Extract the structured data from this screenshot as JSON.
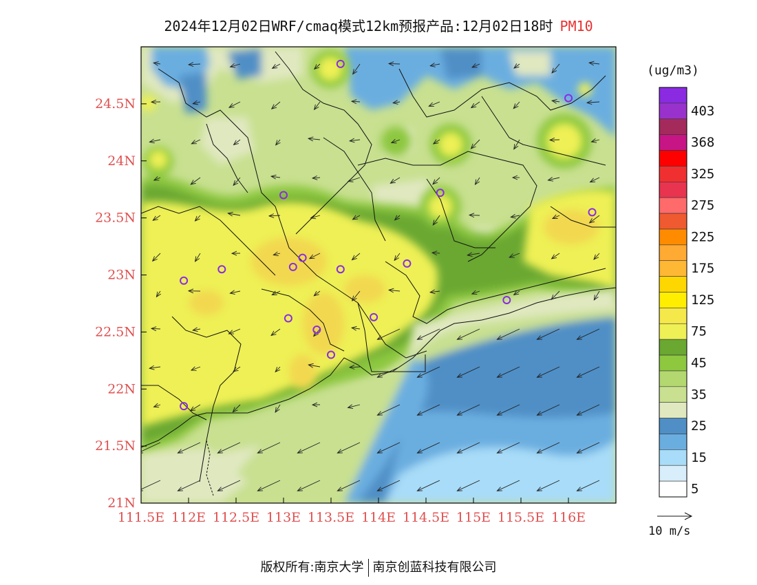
{
  "title": {
    "main": "2024年12月02日WRF/cmaq模式12km预报产品:12月02日18时",
    "pollutant": "PM10"
  },
  "axes": {
    "x_ticks": [
      "111.5E",
      "112E",
      "112.5E",
      "113E",
      "113.5E",
      "114E",
      "114.5E",
      "115E",
      "115.5E",
      "116E"
    ],
    "y_ticks": [
      "24.5N",
      "24N",
      "23.5N",
      "23N",
      "22.5N",
      "22N",
      "21.5N",
      "21N"
    ],
    "lon_range": [
      111.5,
      116.5
    ],
    "lat_range": [
      21,
      25
    ]
  },
  "legend": {
    "unit": "(ug/m3)",
    "levels": [
      {
        "label": "",
        "color": "#8a2be2"
      },
      {
        "label": "403",
        "color": "#9932cc"
      },
      {
        "label": "",
        "color": "#a52a5c"
      },
      {
        "label": "368",
        "color": "#c71585"
      },
      {
        "label": "",
        "color": "#ff0000"
      },
      {
        "label": "325",
        "color": "#f03030"
      },
      {
        "label": "",
        "color": "#e8344f"
      },
      {
        "label": "275",
        "color": "#ff6a6a"
      },
      {
        "label": "",
        "color": "#f05a30"
      },
      {
        "label": "225",
        "color": "#ff8c00"
      },
      {
        "label": "",
        "color": "#ffaa33"
      },
      {
        "label": "175",
        "color": "#ffb833"
      },
      {
        "label": "",
        "color": "#ffd700"
      },
      {
        "label": "125",
        "color": "#ffee00"
      },
      {
        "label": "",
        "color": "#f5e84a"
      },
      {
        "label": "75",
        "color": "#eef055"
      },
      {
        "label": "",
        "color": "#6aa832"
      },
      {
        "label": "45",
        "color": "#8dc83f"
      },
      {
        "label": "",
        "color": "#b4d870"
      },
      {
        "label": "35",
        "color": "#c8e090"
      },
      {
        "label": "",
        "color": "#e0e8c0"
      },
      {
        "label": "25",
        "color": "#4f8fc6"
      },
      {
        "label": "",
        "color": "#6aaee0"
      },
      {
        "label": "15",
        "color": "#a8dcf8"
      },
      {
        "label": "",
        "color": "#d8eefa"
      },
      {
        "label": "5",
        "color": "#ffffff"
      }
    ]
  },
  "wind_reference": "10 m/s",
  "stations_pm10_high": [
    {
      "lon": 113.6,
      "lat": 24.85
    },
    {
      "lon": 116.0,
      "lat": 24.55
    },
    {
      "lon": 113.0,
      "lat": 23.7
    },
    {
      "lon": 114.65,
      "lat": 23.72
    },
    {
      "lon": 116.25,
      "lat": 23.55
    },
    {
      "lon": 112.35,
      "lat": 23.05
    },
    {
      "lon": 111.95,
      "lat": 22.95
    },
    {
      "lon": 113.1,
      "lat": 23.07
    },
    {
      "lon": 113.2,
      "lat": 23.15
    },
    {
      "lon": 113.6,
      "lat": 23.05
    },
    {
      "lon": 114.3,
      "lat": 23.1
    },
    {
      "lon": 115.35,
      "lat": 22.78
    },
    {
      "lon": 113.05,
      "lat": 22.62
    },
    {
      "lon": 113.35,
      "lat": 22.52
    },
    {
      "lon": 113.95,
      "lat": 22.63
    },
    {
      "lon": 113.5,
      "lat": 22.3
    },
    {
      "lon": 111.95,
      "lat": 21.85
    }
  ],
  "colors": {
    "land_low": "#c8e090",
    "land_mid": "#8dc83f",
    "urban_high": "#eef055",
    "urban_peak": "#f2d850",
    "sea_clean": "#4f8fc6",
    "sea_light": "#a8dcf8",
    "coastal": "#e0e8c0"
  },
  "footer": {
    "left": "版权所有:南京大学",
    "right": "南京创蓝科技有限公司"
  }
}
